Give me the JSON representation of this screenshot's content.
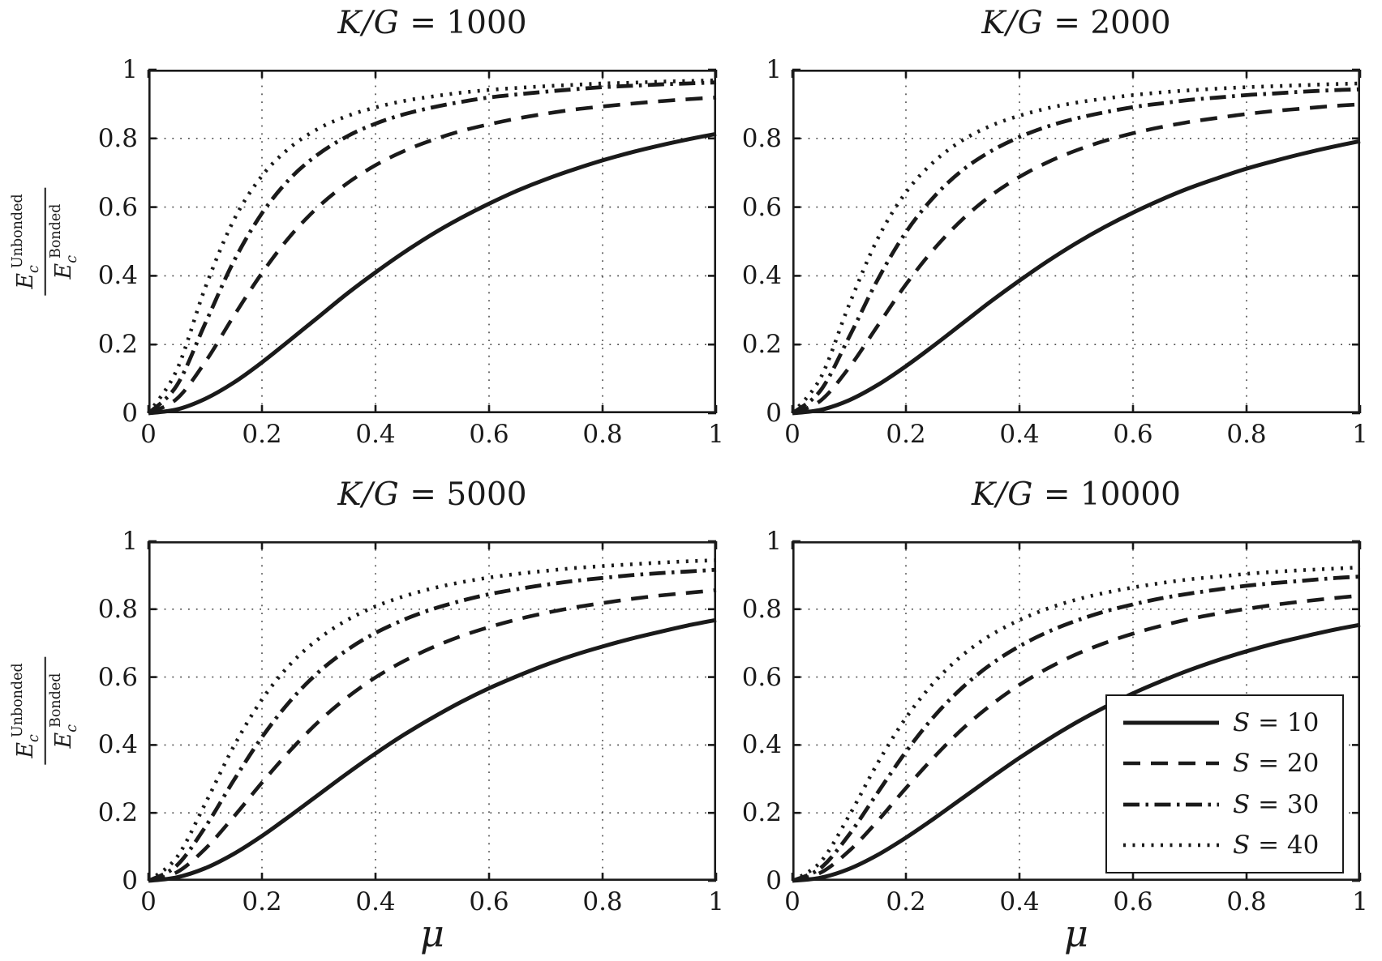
{
  "figure": {
    "background": "#ffffff",
    "line_color": "#1a1a1a",
    "grid_color": "#4a4a4a",
    "ylabel_parts": {
      "base": "E",
      "sub": "c",
      "num_sup": "Unbonded",
      "den_sup": "Bonded"
    }
  },
  "legend": {
    "location": "bottom-right-subplot",
    "var_symbol": "S",
    "entries": [
      {
        "label": "S = 10",
        "suffix": " = 10",
        "style": "solid"
      },
      {
        "label": "S = 20",
        "suffix": " = 20",
        "style": "dashed"
      },
      {
        "label": "S = 30",
        "suffix": " = 30",
        "style": "dash-dot"
      },
      {
        "label": "S = 40",
        "suffix": " = 40",
        "style": "dotted"
      }
    ]
  },
  "chart_data": [
    {
      "type": "line",
      "title": "K/G = 1000",
      "title_prefix": "K/G",
      "title_suffix": " = 1000",
      "xlabel": "",
      "ylabel": "E_c^Unbonded / E_c^Bonded",
      "xlim": [
        0,
        1
      ],
      "ylim": [
        0,
        1
      ],
      "xticks": [
        0,
        0.2,
        0.4,
        0.6,
        0.8,
        1
      ],
      "xtick_labels": [
        "0",
        "0.2",
        "0.4",
        "0.6",
        "0.8",
        "1"
      ],
      "yticks": [
        0,
        0.2,
        0.4,
        0.6,
        0.8,
        1
      ],
      "ytick_labels": [
        "0",
        "0.2",
        "0.4",
        "0.6",
        "0.8",
        "1"
      ],
      "grid": true,
      "x": [
        0,
        0.05,
        0.1,
        0.15,
        0.2,
        0.25,
        0.3,
        0.35,
        0.4,
        0.45,
        0.5,
        0.55,
        0.6,
        0.65,
        0.7,
        0.75,
        0.8,
        0.85,
        0.9,
        0.95,
        1
      ],
      "series": [
        {
          "name": "S = 10",
          "style": "solid",
          "values": [
            0,
            0.011,
            0.042,
            0.089,
            0.148,
            0.214,
            0.281,
            0.348,
            0.41,
            0.468,
            0.521,
            0.568,
            0.61,
            0.648,
            0.681,
            0.71,
            0.736,
            0.759,
            0.779,
            0.797,
            0.813
          ]
        },
        {
          "name": "S = 20",
          "style": "dashed",
          "values": [
            0,
            0.042,
            0.149,
            0.282,
            0.408,
            0.516,
            0.602,
            0.669,
            0.722,
            0.763,
            0.795,
            0.821,
            0.841,
            0.858,
            0.872,
            0.884,
            0.893,
            0.901,
            0.908,
            0.914,
            0.919
          ]
        },
        {
          "name": "S = 30",
          "style": "dash-dot",
          "values": [
            0,
            0.081,
            0.261,
            0.441,
            0.582,
            0.684,
            0.755,
            0.806,
            0.843,
            0.87,
            0.89,
            0.906,
            0.919,
            0.928,
            0.936,
            0.943,
            0.949,
            0.953,
            0.957,
            0.96,
            0.963
          ]
        },
        {
          "name": "S = 40",
          "style": "dotted",
          "values": [
            0,
            0.126,
            0.365,
            0.561,
            0.691,
            0.774,
            0.829,
            0.865,
            0.89,
            0.909,
            0.922,
            0.933,
            0.941,
            0.947,
            0.952,
            0.956,
            0.96,
            0.962,
            0.965,
            0.967,
            0.969
          ]
        }
      ]
    },
    {
      "type": "line",
      "title": "K/G = 2000",
      "title_prefix": "K/G",
      "title_suffix": " = 2000",
      "xlabel": "",
      "ylabel": "",
      "xlim": [
        0,
        1
      ],
      "ylim": [
        0,
        1
      ],
      "xticks": [
        0,
        0.2,
        0.4,
        0.6,
        0.8,
        1
      ],
      "xtick_labels": [
        "0",
        "0.2",
        "0.4",
        "0.6",
        "0.8",
        "1"
      ],
      "yticks": [
        0,
        0.2,
        0.4,
        0.6,
        0.8,
        1
      ],
      "ytick_labels": [
        "0",
        "0.2",
        "0.4",
        "0.6",
        "0.8",
        "1"
      ],
      "grid": true,
      "x": [
        0,
        0.05,
        0.1,
        0.15,
        0.2,
        0.25,
        0.3,
        0.35,
        0.4,
        0.45,
        0.5,
        0.55,
        0.6,
        0.65,
        0.7,
        0.75,
        0.8,
        0.85,
        0.9,
        0.95,
        1
      ],
      "series": [
        {
          "name": "S = 10",
          "style": "solid",
          "values": [
            0,
            0.01,
            0.038,
            0.082,
            0.137,
            0.198,
            0.262,
            0.326,
            0.386,
            0.443,
            0.495,
            0.542,
            0.584,
            0.622,
            0.656,
            0.685,
            0.712,
            0.735,
            0.756,
            0.775,
            0.792
          ]
        },
        {
          "name": "S = 20",
          "style": "dashed",
          "values": [
            0,
            0.037,
            0.133,
            0.254,
            0.375,
            0.479,
            0.565,
            0.634,
            0.688,
            0.731,
            0.765,
            0.793,
            0.815,
            0.833,
            0.848,
            0.86,
            0.871,
            0.88,
            0.887,
            0.894,
            0.899
          ]
        },
        {
          "name": "S = 30",
          "style": "dash-dot",
          "values": [
            0,
            0.067,
            0.222,
            0.388,
            0.527,
            0.631,
            0.708,
            0.763,
            0.804,
            0.835,
            0.858,
            0.876,
            0.891,
            0.902,
            0.912,
            0.919,
            0.926,
            0.931,
            0.936,
            0.94,
            0.943
          ]
        },
        {
          "name": "S = 40",
          "style": "dotted",
          "values": [
            0,
            0.104,
            0.316,
            0.507,
            0.643,
            0.733,
            0.795,
            0.837,
            0.866,
            0.888,
            0.904,
            0.916,
            0.926,
            0.934,
            0.94,
            0.945,
            0.949,
            0.952,
            0.955,
            0.958,
            0.96
          ]
        }
      ]
    },
    {
      "type": "line",
      "title": "K/G = 5000",
      "title_prefix": "K/G",
      "title_suffix": " = 5000",
      "xlabel": "μ",
      "ylabel": "E_c^Unbonded / E_c^Bonded",
      "xlim": [
        0,
        1
      ],
      "ylim": [
        0,
        1
      ],
      "xticks": [
        0,
        0.2,
        0.4,
        0.6,
        0.8,
        1
      ],
      "xtick_labels": [
        "0",
        "0.2",
        "0.4",
        "0.6",
        "0.8",
        "1"
      ],
      "yticks": [
        0,
        0.2,
        0.4,
        0.6,
        0.8,
        1
      ],
      "ytick_labels": [
        "0",
        "0.2",
        "0.4",
        "0.6",
        "0.8",
        "1"
      ],
      "grid": true,
      "x": [
        0,
        0.05,
        0.1,
        0.15,
        0.2,
        0.25,
        0.3,
        0.35,
        0.4,
        0.45,
        0.5,
        0.55,
        0.6,
        0.65,
        0.7,
        0.75,
        0.8,
        0.85,
        0.9,
        0.95,
        1
      ],
      "series": [
        {
          "name": "S = 10",
          "style": "solid",
          "values": [
            0,
            0.01,
            0.037,
            0.079,
            0.132,
            0.192,
            0.254,
            0.316,
            0.375,
            0.43,
            0.48,
            0.526,
            0.567,
            0.603,
            0.636,
            0.665,
            0.69,
            0.713,
            0.733,
            0.752,
            0.768
          ]
        },
        {
          "name": "S = 20",
          "style": "dashed",
          "values": [
            0,
            0.025,
            0.094,
            0.188,
            0.289,
            0.384,
            0.469,
            0.54,
            0.599,
            0.647,
            0.687,
            0.72,
            0.747,
            0.77,
            0.789,
            0.805,
            0.818,
            0.83,
            0.84,
            0.848,
            0.856
          ]
        },
        {
          "name": "S = 30",
          "style": "dash-dot",
          "values": [
            0,
            0.045,
            0.158,
            0.295,
            0.423,
            0.53,
            0.615,
            0.68,
            0.73,
            0.769,
            0.8,
            0.824,
            0.844,
            0.859,
            0.872,
            0.883,
            0.892,
            0.9,
            0.906,
            0.911,
            0.916
          ]
        },
        {
          "name": "S = 40",
          "style": "dotted",
          "values": [
            0,
            0.069,
            0.227,
            0.395,
            0.534,
            0.638,
            0.713,
            0.768,
            0.808,
            0.838,
            0.861,
            0.879,
            0.893,
            0.904,
            0.913,
            0.921,
            0.927,
            0.932,
            0.937,
            0.941,
            0.944
          ]
        }
      ]
    },
    {
      "type": "line",
      "title": "K/G = 10000",
      "title_prefix": "K/G",
      "title_suffix": " = 10000",
      "xlabel": "μ",
      "ylabel": "",
      "xlim": [
        0,
        1
      ],
      "ylim": [
        0,
        1
      ],
      "xticks": [
        0,
        0.2,
        0.4,
        0.6,
        0.8,
        1
      ],
      "xtick_labels": [
        "0",
        "0.2",
        "0.4",
        "0.6",
        "0.8",
        "1"
      ],
      "yticks": [
        0,
        0.2,
        0.4,
        0.6,
        0.8,
        1
      ],
      "ytick_labels": [
        "0",
        "0.2",
        "0.4",
        "0.6",
        "0.8",
        "1"
      ],
      "grid": true,
      "x": [
        0,
        0.05,
        0.1,
        0.15,
        0.2,
        0.25,
        0.3,
        0.35,
        0.4,
        0.45,
        0.5,
        0.55,
        0.6,
        0.65,
        0.7,
        0.75,
        0.8,
        0.85,
        0.9,
        0.95,
        1
      ],
      "series": [
        {
          "name": "S = 10",
          "style": "solid",
          "values": [
            0,
            0.009,
            0.035,
            0.076,
            0.127,
            0.184,
            0.244,
            0.304,
            0.362,
            0.416,
            0.466,
            0.511,
            0.552,
            0.588,
            0.621,
            0.65,
            0.676,
            0.699,
            0.719,
            0.738,
            0.754
          ]
        },
        {
          "name": "S = 20",
          "style": "dashed",
          "values": [
            0,
            0.024,
            0.088,
            0.176,
            0.273,
            0.365,
            0.448,
            0.518,
            0.577,
            0.626,
            0.667,
            0.7,
            0.728,
            0.751,
            0.771,
            0.787,
            0.801,
            0.813,
            0.823,
            0.832,
            0.84
          ]
        },
        {
          "name": "S = 30",
          "style": "dash-dot",
          "values": [
            0,
            0.038,
            0.136,
            0.259,
            0.38,
            0.485,
            0.57,
            0.638,
            0.691,
            0.733,
            0.766,
            0.793,
            0.814,
            0.832,
            0.846,
            0.858,
            0.869,
            0.877,
            0.884,
            0.891,
            0.896
          ]
        },
        {
          "name": "S = 40",
          "style": "dotted",
          "values": [
            0,
            0.056,
            0.192,
            0.346,
            0.48,
            0.585,
            0.665,
            0.724,
            0.768,
            0.802,
            0.828,
            0.848,
            0.864,
            0.877,
            0.888,
            0.896,
            0.904,
            0.91,
            0.915,
            0.919,
            0.923
          ]
        }
      ]
    }
  ]
}
